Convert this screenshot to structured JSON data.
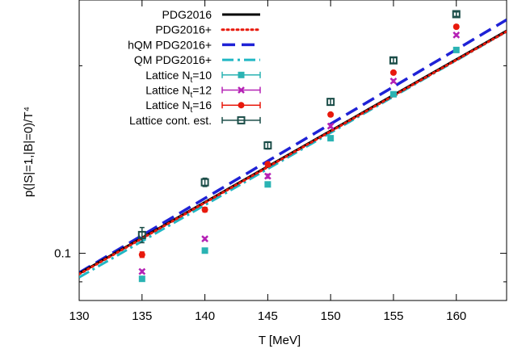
{
  "chart_data": {
    "type": "line",
    "xlabel": "T [MeV]",
    "ylabel": "p(|S|=1,|B|=0)/T⁴",
    "yscale": "log",
    "xlim": [
      130,
      164
    ],
    "ylim": [
      0.084,
      0.255
    ],
    "xticks": [
      130,
      135,
      140,
      145,
      150,
      155,
      160
    ],
    "yticks": [
      0.1
    ],
    "ytick_labels": [
      "0.1"
    ],
    "grid": false,
    "legend_position": "top-left",
    "series": [
      {
        "name": "PDG2016",
        "style": "solid",
        "color": "#000000",
        "x": [
          130,
          164
        ],
        "y": [
          0.0928,
          0.2275
        ]
      },
      {
        "name": "PDG2016+",
        "style": "dotted",
        "color": "#e8190c",
        "x": [
          130,
          164
        ],
        "y": [
          0.0926,
          0.227
        ]
      },
      {
        "name": "hQM PDG2016+",
        "style": "dashed",
        "color": "#1f22d6",
        "x": [
          130,
          164
        ],
        "y": [
          0.0931,
          0.237
        ]
      },
      {
        "name": "QM PDG2016+",
        "style": "dashdot",
        "color": "#21b7c4",
        "x": [
          130,
          164
        ],
        "y": [
          0.0915,
          0.227
        ]
      }
    ],
    "points": [
      {
        "name": "Lattice N",
        "subscript": "t",
        "suffix": "=10",
        "marker": "square",
        "color": "#2ab3b3",
        "x": [
          135,
          140,
          145,
          150,
          155,
          160
        ],
        "y": [
          0.091,
          0.101,
          0.129,
          0.153,
          0.18,
          0.212
        ],
        "err": [
          0.0005,
          0.0005,
          0.001,
          0.001,
          0.001,
          0.001
        ]
      },
      {
        "name": "Lattice N",
        "subscript": "t",
        "suffix": "=12",
        "marker": "x",
        "color": "#b522b5",
        "x": [
          135,
          140,
          145,
          150,
          155,
          160
        ],
        "y": [
          0.0935,
          0.1055,
          0.133,
          0.16,
          0.189,
          0.224
        ],
        "err": [
          0.0005,
          0.0005,
          0.001,
          0.001,
          0.001,
          0.001
        ]
      },
      {
        "name": "Lattice N",
        "subscript": "t",
        "suffix": "=16",
        "marker": "circle",
        "color": "#e8190c",
        "x": [
          135,
          140,
          145,
          150,
          155,
          160
        ],
        "y": [
          0.0995,
          0.1175,
          0.139,
          0.167,
          0.195,
          0.231
        ],
        "err": [
          0.001,
          0.001,
          0.001,
          0.001,
          0.001,
          0.0015
        ]
      },
      {
        "name": "Lattice cont. est.",
        "marker": "open-square",
        "color": "#1b4d48",
        "x": [
          135,
          140,
          145,
          150,
          155,
          160
        ],
        "y": [
          0.107,
          0.13,
          0.149,
          0.175,
          0.204,
          0.242
        ],
        "err": [
          0.003,
          0.002,
          0.002,
          0.002,
          0.002,
          0.002
        ]
      }
    ]
  }
}
